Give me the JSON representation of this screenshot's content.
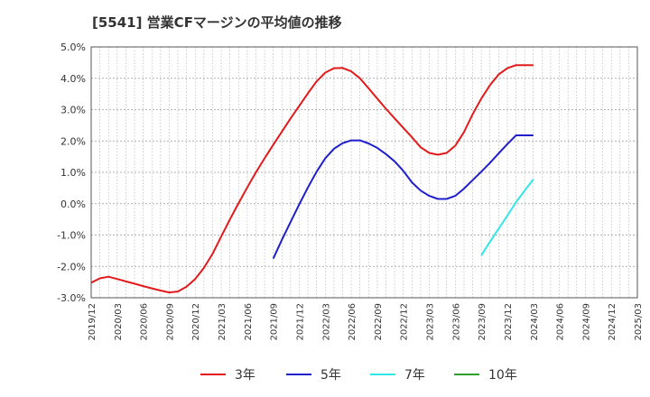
{
  "title": "[5541]  営業CFマージンの平均値の推移",
  "chart_data": {
    "type": "line",
    "title": "[5541]  営業CFマージンの平均値の推移",
    "xlabel": "",
    "ylabel": "",
    "ylim": [
      -3.0,
      5.0
    ],
    "grid": true,
    "legend_position": "bottom",
    "y_ticks": [
      "5.0%",
      "4.0%",
      "3.0%",
      "2.0%",
      "1.0%",
      "0.0%",
      "-1.0%",
      "-2.0%",
      "-3.0%"
    ],
    "x_ticks": [
      "2019/12",
      "2020/03",
      "2020/06",
      "2020/09",
      "2020/12",
      "2021/03",
      "2021/06",
      "2021/09",
      "2021/12",
      "2022/03",
      "2022/06",
      "2022/09",
      "2022/12",
      "2023/03",
      "2023/06",
      "2023/09",
      "2023/12",
      "2024/03",
      "2024/06",
      "2024/09",
      "2024/12",
      "2025/03"
    ],
    "series": [
      {
        "name": "3年",
        "color": "#e31a1c",
        "x": [
          "2019/12",
          "2020/01",
          "2020/02",
          "2020/03",
          "2020/04",
          "2020/05",
          "2020/06",
          "2020/07",
          "2020/08",
          "2020/09",
          "2020/10",
          "2020/11",
          "2020/12",
          "2021/01",
          "2021/02",
          "2021/03",
          "2021/04",
          "2021/05",
          "2021/06",
          "2021/07",
          "2021/08",
          "2021/09",
          "2021/10",
          "2021/11",
          "2021/12",
          "2022/01",
          "2022/02",
          "2022/03",
          "2022/04",
          "2022/05",
          "2022/06",
          "2022/07",
          "2022/08",
          "2022/09",
          "2022/10",
          "2022/11",
          "2022/12",
          "2023/01",
          "2023/02",
          "2023/03",
          "2023/04",
          "2023/05",
          "2023/06",
          "2023/07",
          "2023/08",
          "2023/09",
          "2023/10",
          "2023/11",
          "2023/12",
          "2024/01",
          "2024/02",
          "2024/03"
        ],
        "values": [
          -2.52,
          -2.38,
          -2.33,
          -2.4,
          -2.48,
          -2.55,
          -2.63,
          -2.7,
          -2.77,
          -2.83,
          -2.8,
          -2.65,
          -2.4,
          -2.05,
          -1.6,
          -1.05,
          -0.5,
          0.02,
          0.52,
          1.0,
          1.45,
          1.88,
          2.3,
          2.72,
          3.12,
          3.52,
          3.9,
          4.18,
          4.32,
          4.33,
          4.22,
          4.0,
          3.68,
          3.35,
          3.03,
          2.72,
          2.42,
          2.12,
          1.8,
          1.62,
          1.56,
          1.62,
          1.85,
          2.28,
          2.85,
          3.35,
          3.78,
          4.12,
          4.32,
          4.42,
          4.42,
          4.42
        ]
      },
      {
        "name": "5年",
        "color": "#1f1fcc",
        "x": [
          "2021/09",
          "2021/10",
          "2021/11",
          "2021/12",
          "2022/01",
          "2022/02",
          "2022/03",
          "2022/04",
          "2022/05",
          "2022/06",
          "2022/07",
          "2022/08",
          "2022/09",
          "2022/10",
          "2022/11",
          "2022/12",
          "2023/01",
          "2023/02",
          "2023/03",
          "2023/04",
          "2023/05",
          "2023/06",
          "2023/07",
          "2023/08",
          "2023/09",
          "2023/10",
          "2023/11",
          "2023/12",
          "2024/01",
          "2024/02",
          "2024/03"
        ],
        "values": [
          -1.75,
          -1.15,
          -0.58,
          -0.02,
          0.52,
          1.02,
          1.45,
          1.75,
          1.93,
          2.02,
          2.02,
          1.92,
          1.78,
          1.58,
          1.35,
          1.05,
          0.68,
          0.42,
          0.25,
          0.15,
          0.15,
          0.25,
          0.48,
          0.75,
          1.02,
          1.3,
          1.6,
          1.9,
          2.18,
          2.18,
          2.18
        ]
      },
      {
        "name": "7年",
        "color": "#33e6e6",
        "x": [
          "2023/09",
          "2023/10",
          "2023/11",
          "2023/12",
          "2024/01",
          "2024/02",
          "2024/03"
        ],
        "values": [
          -1.65,
          -1.22,
          -0.8,
          -0.38,
          0.05,
          0.42,
          0.78
        ]
      },
      {
        "name": "10年",
        "color": "#2ca02c",
        "x": [],
        "values": []
      }
    ]
  }
}
